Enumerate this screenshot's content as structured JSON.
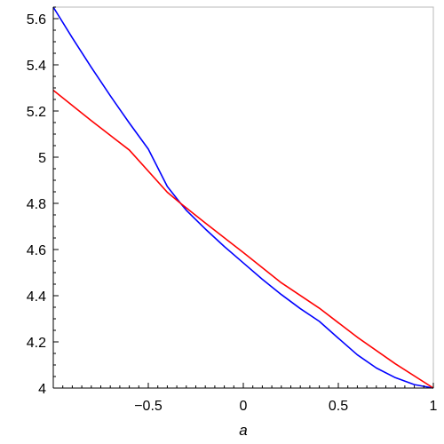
{
  "chart_data": {
    "type": "line",
    "title": "",
    "xlabel": "a",
    "ylabel": "",
    "xlim": [
      -1,
      1
    ],
    "ylim": [
      4,
      5.65
    ],
    "x_ticks": [
      -0.5,
      0,
      0.5,
      1
    ],
    "x_tick_labels": [
      "−0.5",
      "0",
      "0.5",
      "1"
    ],
    "y_ticks": [
      4,
      4.2,
      4.4,
      4.6,
      4.8,
      5,
      5.2,
      5.4,
      5.6
    ],
    "y_tick_labels": [
      "4",
      "4.2",
      "4.4",
      "4.6",
      "4.8",
      "5",
      "5.2",
      "5.4",
      "5.6"
    ],
    "grid": false,
    "legend": "none",
    "series": [
      {
        "color": "#0000ff",
        "x": [
          -1,
          -0.9,
          -0.8,
          -0.7,
          -0.6,
          -0.5,
          -0.4,
          -0.33,
          -0.3,
          -0.2,
          -0.1,
          0,
          0.1,
          0.2,
          0.3,
          0.4,
          0.5,
          0.6,
          0.7,
          0.8,
          0.9,
          1
        ],
        "y": [
          5.65,
          5.517,
          5.389,
          5.266,
          5.148,
          5.035,
          4.873,
          4.8,
          4.77,
          4.689,
          4.613,
          4.542,
          4.471,
          4.405,
          4.344,
          4.289,
          4.216,
          4.144,
          4.087,
          4.045,
          4.015,
          4.0
        ]
      },
      {
        "color": "#ff0000",
        "x": [
          -1,
          -0.8,
          -0.6,
          -0.4,
          -0.33,
          -0.2,
          0,
          0.2,
          0.4,
          0.6,
          0.8,
          1
        ],
        "y": [
          5.29,
          5.158,
          5.031,
          4.848,
          4.8,
          4.715,
          4.587,
          4.456,
          4.346,
          4.22,
          4.105,
          4.0
        ]
      }
    ]
  }
}
